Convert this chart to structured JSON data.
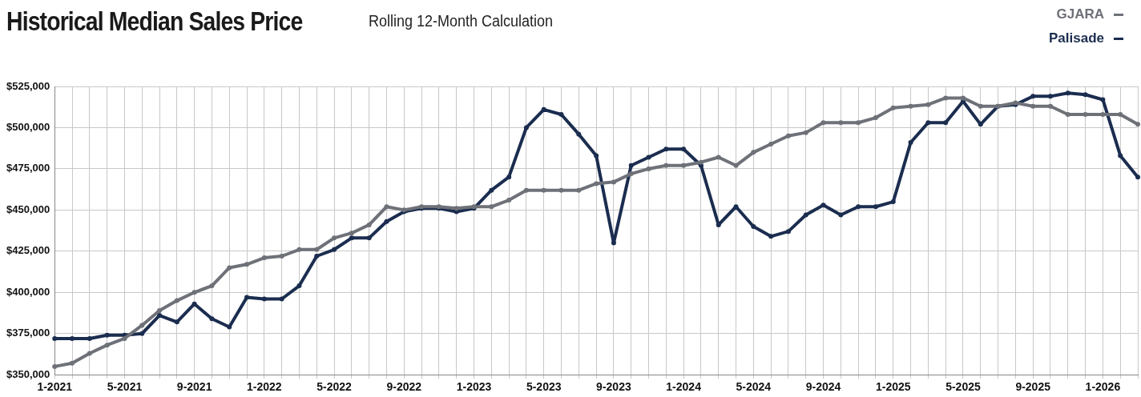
{
  "chart_data": {
    "type": "line",
    "title": "Historical Median Sales Price",
    "subtitle": "Rolling 12-Month Calculation",
    "categories": [
      "1-2021",
      null,
      null,
      null,
      "5-2021",
      null,
      null,
      null,
      "9-2021",
      null,
      null,
      null,
      "1-2022",
      null,
      null,
      null,
      "5-2022",
      null,
      null,
      null,
      "9-2022",
      null,
      null,
      null,
      "1-2023",
      null,
      null,
      null,
      "5-2023",
      null,
      null,
      null,
      "9-2023",
      null,
      null,
      null,
      "1-2024",
      null,
      null,
      null,
      "5-2024",
      null,
      null,
      null,
      "9-2024",
      null,
      null,
      null,
      "1-2025",
      null,
      null,
      null,
      "5-2025",
      null,
      null,
      null,
      "9-2025",
      null,
      null,
      null,
      "1-2026",
      null,
      null
    ],
    "series": [
      {
        "name": "GJARA",
        "color": "#6e7178",
        "values": [
          355000,
          357000,
          363000,
          368000,
          372000,
          380000,
          389000,
          395000,
          400000,
          404000,
          415000,
          417000,
          421000,
          422000,
          426000,
          426000,
          433000,
          436000,
          441000,
          452000,
          450000,
          452000,
          452000,
          451000,
          452000,
          452000,
          456000,
          462000,
          462000,
          462000,
          462000,
          466000,
          467000,
          472000,
          475000,
          477000,
          477000,
          479000,
          482000,
          477000,
          485000,
          490000,
          495000,
          497000,
          503000,
          503000,
          503000,
          506000,
          512000,
          513000,
          514000,
          518000,
          518000,
          513000,
          513000,
          515000,
          513000,
          513000,
          508000,
          508000,
          508000,
          508000,
          502000
        ]
      },
      {
        "name": "Palisade",
        "color": "#1b2d4f",
        "values": [
          372000,
          372000,
          372000,
          374000,
          374000,
          375000,
          386000,
          382000,
          393000,
          384000,
          379000,
          397000,
          396000,
          396000,
          404000,
          422000,
          426000,
          433000,
          433000,
          443000,
          449000,
          451000,
          451000,
          449000,
          451000,
          462000,
          470000,
          500000,
          511000,
          508000,
          496000,
          483000,
          430000,
          477000,
          482000,
          487000,
          487000,
          477000,
          441000,
          452000,
          440000,
          434000,
          437000,
          447000,
          453000,
          447000,
          452000,
          452000,
          455000,
          491000,
          503000,
          503000,
          516000,
          502000,
          513000,
          514000,
          519000,
          519000,
          521000,
          520000,
          517000,
          483000,
          470000
        ]
      }
    ],
    "ylim": [
      350000,
      525000
    ],
    "yticks": [
      {
        "value": 350000,
        "label": "$350,000"
      },
      {
        "value": 375000,
        "label": "$375,000"
      },
      {
        "value": 400000,
        "label": "$400,000"
      },
      {
        "value": 425000,
        "label": "$425,000"
      },
      {
        "value": 450000,
        "label": "$450,000"
      },
      {
        "value": 475000,
        "label": "$475,000"
      },
      {
        "value": 500000,
        "label": "$500,000"
      },
      {
        "value": 525000,
        "label": "$525,000"
      }
    ],
    "grid": true,
    "legend": "top right",
    "marker": "circle",
    "line_style": "solid"
  }
}
